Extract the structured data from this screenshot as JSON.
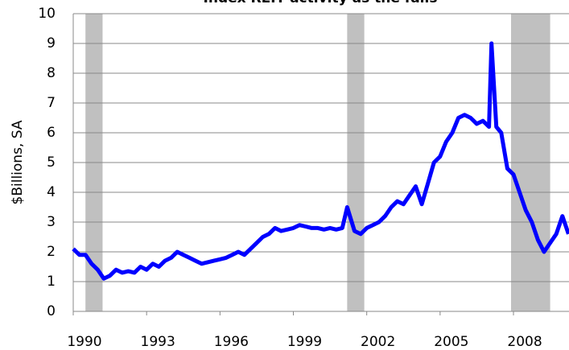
{
  "chart_data": {
    "type": "line",
    "title": "Index REIT activity as the falls",
    "ylabel": "$Billions, SA",
    "x": [
      1990.0,
      1990.25,
      1990.5,
      1990.75,
      1991.0,
      1991.25,
      1991.5,
      1991.75,
      1992.0,
      1992.25,
      1992.5,
      1992.75,
      1993.0,
      1993.25,
      1993.5,
      1993.75,
      1994.0,
      1994.25,
      1994.5,
      1994.75,
      1995.0,
      1995.25,
      1995.5,
      1995.75,
      1996.0,
      1996.25,
      1996.5,
      1996.75,
      1997.0,
      1997.25,
      1997.5,
      1997.75,
      1998.0,
      1998.25,
      1998.5,
      1998.75,
      1999.0,
      1999.25,
      1999.5,
      1999.75,
      2000.0,
      2000.25,
      2000.5,
      2000.75,
      2001.0,
      2001.2,
      2001.5,
      2001.75,
      2002.0,
      2002.25,
      2002.5,
      2002.75,
      2003.0,
      2003.25,
      2003.5,
      2003.75,
      2004.0,
      2004.25,
      2004.5,
      2004.75,
      2005.0,
      2005.25,
      2005.5,
      2005.75,
      2006.0,
      2006.25,
      2006.5,
      2006.75,
      2007.0,
      2007.1,
      2007.3,
      2007.5,
      2007.75,
      2008.0,
      2008.25,
      2008.5,
      2008.75,
      2009.0,
      2009.25,
      2009.5,
      2009.75,
      2010.0,
      2010.25
    ],
    "series": [
      {
        "name": "REIT activity",
        "color": "#0000ff",
        "values": [
          2.1,
          1.9,
          1.9,
          1.6,
          1.4,
          1.1,
          1.2,
          1.4,
          1.3,
          1.35,
          1.3,
          1.5,
          1.4,
          1.6,
          1.5,
          1.7,
          1.8,
          2.0,
          1.9,
          1.8,
          1.7,
          1.6,
          1.65,
          1.7,
          1.75,
          1.8,
          1.9,
          2.0,
          1.9,
          2.1,
          2.3,
          2.5,
          2.6,
          2.8,
          2.7,
          2.75,
          2.8,
          2.9,
          2.85,
          2.8,
          2.8,
          2.75,
          2.8,
          2.75,
          2.8,
          3.5,
          2.7,
          2.6,
          2.8,
          2.9,
          3.0,
          3.2,
          3.5,
          3.7,
          3.6,
          3.9,
          4.2,
          3.6,
          4.3,
          5.0,
          5.2,
          5.7,
          6.0,
          6.5,
          6.6,
          6.5,
          6.3,
          6.4,
          6.2,
          9.0,
          6.2,
          6.0,
          4.8,
          4.6,
          4.0,
          3.4,
          3.0,
          2.4,
          2.0,
          2.3,
          2.6,
          3.2,
          2.6
        ]
      }
    ],
    "recessions": [
      [
        1990.5,
        1991.2
      ],
      [
        2001.2,
        2001.9
      ],
      [
        2007.9,
        2009.5
      ]
    ],
    "recession_color": "#c0c0c0",
    "xlim": [
      1990,
      2010.27
    ],
    "xticks": [
      1990,
      1993,
      1996,
      1999,
      2002,
      2005,
      2008
    ],
    "ylim": [
      0,
      10
    ],
    "yticks": [
      0,
      1,
      2,
      3,
      4,
      5,
      6,
      7,
      8,
      9,
      10
    ],
    "grid": true
  }
}
